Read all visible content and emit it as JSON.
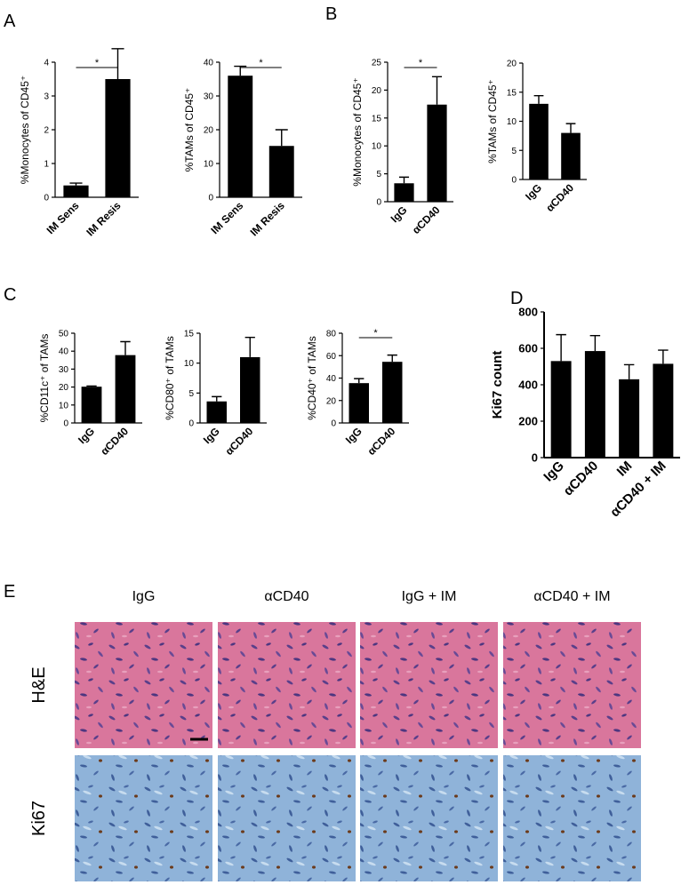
{
  "panel_labels": [
    "A",
    "B",
    "C",
    "D",
    "E"
  ],
  "chart_data": [
    {
      "type": "bar",
      "y_label": "%Monocytes of CD45⁺",
      "categories": [
        "IM Sens",
        "IM Resis"
      ],
      "values": [
        0.35,
        3.5
      ],
      "errors": [
        0.07,
        0.9
      ],
      "ylim": [
        0,
        4
      ],
      "yticks": [
        0,
        1,
        2,
        3,
        4
      ],
      "color": "#000000",
      "significance": "*"
    },
    {
      "type": "bar",
      "y_label": "%TAMs of CD45⁺",
      "categories": [
        "IM Sens",
        "IM Resis"
      ],
      "values": [
        36,
        15.2
      ],
      "errors": [
        2.8,
        4.8
      ],
      "ylim": [
        0,
        40
      ],
      "yticks": [
        0,
        10,
        20,
        30,
        40
      ],
      "color": "#000000",
      "significance": "*"
    },
    {
      "type": "bar",
      "y_label": "%Monocytes of CD45⁺",
      "categories": [
        "IgG",
        "αCD40"
      ],
      "values": [
        3.3,
        17.4
      ],
      "errors": [
        1.1,
        5
      ],
      "ylim": [
        0,
        25
      ],
      "yticks": [
        0,
        5,
        10,
        15,
        20,
        25
      ],
      "color": "#000000",
      "significance": "*"
    },
    {
      "type": "bar",
      "y_label": "%TAMs of CD45⁺",
      "categories": [
        "IgG",
        "αCD40"
      ],
      "values": [
        13,
        8
      ],
      "errors": [
        1.4,
        1.6
      ],
      "ylim": [
        0,
        20
      ],
      "yticks": [
        0,
        5,
        10,
        15,
        20
      ],
      "color": "#000000"
    },
    {
      "type": "bar",
      "y_label": "%CD11c⁺ of TAMs",
      "categories": [
        "IgG",
        "αCD40"
      ],
      "values": [
        20.2,
        37.8
      ],
      "errors": [
        0.4,
        7.5
      ],
      "ylim": [
        0,
        50
      ],
      "yticks": [
        0,
        10,
        20,
        30,
        40,
        50
      ],
      "color": "#000000"
    },
    {
      "type": "bar",
      "y_label": "%CD80⁺ of TAMs",
      "categories": [
        "IgG",
        "αCD40"
      ],
      "values": [
        3.6,
        11
      ],
      "errors": [
        0.8,
        3.3
      ],
      "ylim": [
        0,
        15
      ],
      "yticks": [
        0,
        5,
        10,
        15
      ],
      "color": "#000000"
    },
    {
      "type": "bar",
      "y_label": "%CD40⁺ of TAMs",
      "categories": [
        "IgG",
        "αCD40"
      ],
      "values": [
        35.5,
        54.5
      ],
      "errors": [
        4,
        6
      ],
      "ylim": [
        0,
        80
      ],
      "yticks": [
        0,
        20,
        40,
        60,
        80
      ],
      "color": "#000000",
      "significance": "*"
    },
    {
      "type": "bar",
      "y_label": "Ki67 count",
      "categories": [
        "IgG",
        "αCD40",
        "IM",
        "αCD40 + IM"
      ],
      "values": [
        530,
        585,
        430,
        515
      ],
      "errors": [
        145,
        85,
        80,
        75
      ],
      "ylim": [
        0,
        800
      ],
      "yticks": [
        0,
        200,
        400,
        600,
        800
      ],
      "color": "#000000"
    }
  ],
  "histology": {
    "columns": [
      "IgG",
      "αCD40",
      "IgG + IM",
      "αCD40 + IM"
    ],
    "rows": [
      "H&E",
      "Ki67"
    ]
  }
}
